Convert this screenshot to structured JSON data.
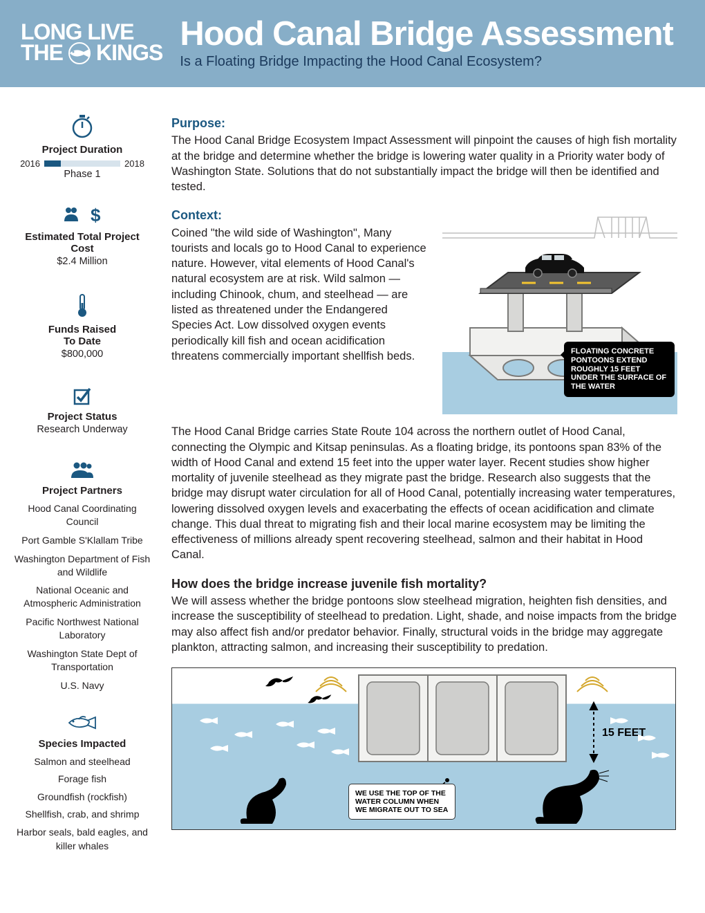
{
  "header": {
    "logo_line1": "LONG LIVE",
    "logo_line2a": "THE",
    "logo_line2b": "KINGS",
    "title": "Hood Canal Bridge Assessment",
    "subtitle": "Is a Floating Bridge Impacting the Hood Canal Ecosystem?"
  },
  "colors": {
    "header_bg": "#87aec8",
    "accent": "#1b5881",
    "water": "#a8cde1",
    "pontoon": "#e8e8e6",
    "pontoon_outline": "#7a7a78",
    "road": "#5a5a5a"
  },
  "sidebar": {
    "duration": {
      "heading": "Project Duration",
      "start": "2016",
      "end": "2018",
      "phase": "Phase 1",
      "fill_pct": 22
    },
    "cost": {
      "heading": "Estimated Total Project Cost",
      "value": "$2.4 Million"
    },
    "funds": {
      "heading": "Funds Raised To Date",
      "value": "$800,000"
    },
    "status": {
      "heading": "Project Status",
      "value": "Research Underway"
    },
    "partners": {
      "heading": "Project Partners",
      "items": [
        "Hood Canal Coordinating Council",
        "Port Gamble S'Klallam Tribe",
        "Washington Department of Fish and Wildlife",
        "National Oceanic and Atmospheric Administration",
        "Pacific Northwest National Laboratory",
        "Washington State Dept of Transportation",
        "U.S. Navy"
      ]
    },
    "species": {
      "heading": "Species Impacted",
      "items": [
        "Salmon and steelhead",
        "Forage fish",
        "Groundfish (rockfish)",
        "Shellfish, crab, and shrimp",
        "Harbor seals, bald eagles, and killer whales"
      ]
    }
  },
  "main": {
    "purpose_heading": "Purpose:",
    "purpose_body": "The Hood Canal Bridge Ecosystem Impact Assessment will pinpoint the causes of high fish mortality at the bridge and determine whether the bridge is lowering water quality in a Priority water body of Washington State. Solutions that do not substantially impact the bridge will then be identified and tested.",
    "context_heading": "Context:",
    "context_body1": "Coined \"the wild side of Washington\", Many tourists and locals go to Hood Canal to experience nature. However, vital elements of Hood Canal's natural ecosystem are at risk. Wild salmon — including Chinook, chum, and steelhead — are listed as threatened under the Endangered Species Act. Low dissolved oxygen events periodically kill fish and ocean acidification threatens commercially important shellfish beds.",
    "context_body2": "The Hood Canal Bridge carries State Route 104 across the northern outlet of Hood Canal, connecting the Olympic and Kitsap peninsulas. As a floating bridge, its pontoons span 83% of the width of Hood Canal and extend 15 feet into the upper water layer. Recent studies show higher mortality of juvenile steelhead as they migrate past the bridge. Research also suggests that the bridge may disrupt water circulation for all of Hood Canal, potentially increasing water temperatures, lowering dissolved oxygen levels and exacerbating the effects of ocean acidification and climate change. This dual threat to migrating fish and their local marine ecosystem may be limiting the effectiveness of millions already spent recovering steelhead, salmon and their habitat in Hood Canal.",
    "mortality_heading": "How does the bridge increase juvenile fish mortality?",
    "mortality_body": "We will assess whether the bridge pontoons slow steelhead migration, heighten fish densities, and increase the susceptibility of steelhead to predation. Light, shade, and noise impacts from the bridge may also affect fish and/or predator behavior. Finally, structural voids in the bridge may aggregate plankton, attracting salmon, and increasing their susceptibility to predation."
  },
  "diagram_top": {
    "callout": "FLOATING CONCRETE PONTOONS EXTEND ROUGHLY 15 FEET UNDER THE SURFACE OF THE WATER"
  },
  "diagram_bottom": {
    "depth_label": "15 FEET",
    "callout": "WE USE THE TOP OF THE WATER COLUMN WHEN WE MIGRATE OUT TO SEA"
  }
}
